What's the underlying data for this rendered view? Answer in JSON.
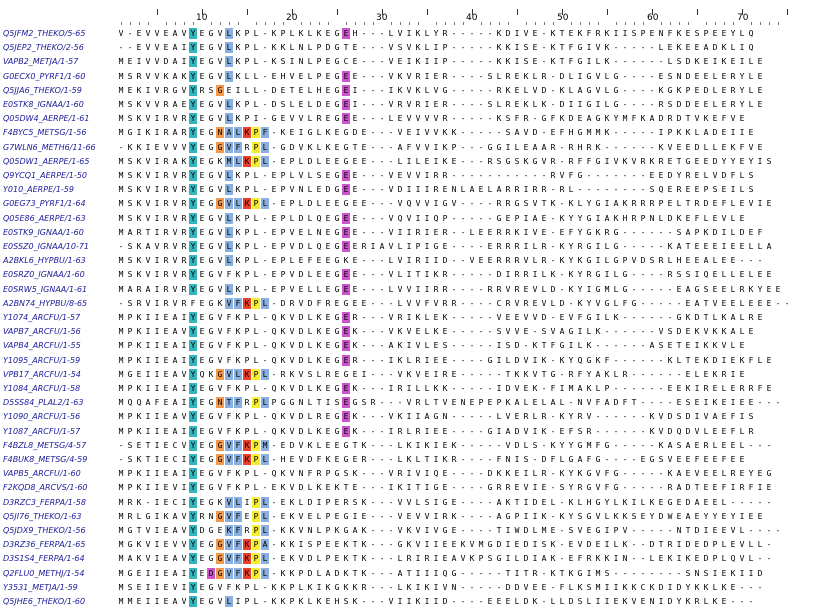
{
  "ruler": {
    "labels": [
      "10",
      "20",
      "30",
      "40",
      "50",
      "60",
      "70"
    ]
  },
  "alignment": {
    "columns": 75,
    "colors": {
      "cyan": "#34b4bc",
      "purple": "#cc55cc",
      "blue": "#8ab0e0",
      "orange": "#f29a4a",
      "red": "#e8402a",
      "yellow": "#f4ef2f",
      "green": "#4fae4f",
      "pink": "#e8aed0"
    },
    "rows": [
      {
        "name": "Q5JFM2_THEKO/5-65",
        "seq": "V-EVVEAVYEGVLKPL-KPLKLKEGEH---LVIKLYR-----KDIVE-KTEKFRKIISPENFKESPEEYLQ"
      },
      {
        "name": "Q5JEP2_THEKO/2-56",
        "seq": "--EVVEAIYEGVLKPL-KKLNLPDGTE---VSVKLIP-----KKISE-KTFGIVK-----LEKEEADKLIQ"
      },
      {
        "name": "VAPB2_METJA/1-57",
        "seq": "MEIVVDAIYEGVLKPL-KSINLPEGCE---VEIKIIP-----KKISE-KTFGILK------LSDKEIKEILE"
      },
      {
        "name": "G0ECX0_PYRF1/1-60",
        "seq": "MSRVVKAKYEGVLKLL-EHVELPEGEE---VKVRIER----SLREKLR-DLIGVLG----ESNDEELERYLE"
      },
      {
        "name": "Q5JJA6_THEKO/1-59",
        "seq": "MEKIVRGVYRSGEILL-DETELHEGEI---IKVKLVG-----RKELVD-KLAGVLG----KGKPEDLERYLE"
      },
      {
        "name": "E0STK8_IGNAA/1-60",
        "seq": "MSKVVRAEYEGVLKPL-DSLELDEGEI---VRVRIER----SLREKLK-DIIGILG----RSDDEELERYLE"
      },
      {
        "name": "Q05DW4_AERPE/1-61",
        "seq": "MSKVIRVRYEGVLKPI-GEVVLREGEE---LEVVVVR-----KSFR-GFKDEAGKYMFKADRDTVKEFVE"
      },
      {
        "name": "F4BYC5_METSG/1-56",
        "seq": "MGIKIRARYEGNALKPF-KEIGLKEGDE---VEIVVKK-----SAVD-EFHGMMK-----IPKKLADEIIE"
      },
      {
        "name": "G7WLN6_METH6/11-66",
        "seq": "-KKIEVVVYEGGVFRPL-GDVKLKEGTE---AFVVIKP---GGILEAAR-RHRK------KVEEDLLEKFVE"
      },
      {
        "name": "Q05DW1_AERPE/1-65",
        "seq": "MSKVIRAKYEGKMLKPL-EPLDLEEGEE---LILEIKE---RSGSKGVR-RFFGIVKVRKRETGEEDYYEYIS"
      },
      {
        "name": "Q9YCQ1_AERPE/1-50",
        "seq": "MSKVIRVRYEGVLKPL-EPLVLSEGEE---VEVVIRR-----------RVFG-------EEDYRELVDFLS"
      },
      {
        "name": "Y010_AERPE/1-59",
        "seq": "MSKVIRVRYEGVLKPL-EPVNLEDGEE---VDIIIRENLAELARRIRR-RL--------SQEREEPSEILS"
      },
      {
        "name": "G0EG73_PYRF1/1-64",
        "seq": "MSKVIRVRYEGGVLKPL-EPLDLEEGEE---VQVVIGV----RRGSVTK-KLYGIAKRRRPELTRDEFLEVIE"
      },
      {
        "name": "Q05E86_AERPE/1-63",
        "seq": "MSKVIRVRYEGVLKPL-EPLDLQEGEE---VQVIIQP-----GEPIAE-KYYGIAKHRPNLDKEFLEVLE"
      },
      {
        "name": "E0STK9_IGNAA/1-60",
        "seq": "MARTIRVRYEGVLKPL-EPVELNEGEE---VIIRIER--LEERRKIVE-EFYGKRG------SAPKDILDEF"
      },
      {
        "name": "E0SSZ0_IGNAA/10-71",
        "seq": "-SKAVRVRYEGVLKPL-EPVDLQEGEERIAVLIPIGE----ERRRILR-KYRGILG-----KATEEEIEELLA"
      },
      {
        "name": "A2BKL6_HYPBU/1-63",
        "seq": "MSKVIRVRYEGVLKPL-EPLEFEEGKE---LVIRIID--VEERRRVLR-KYKGILGPVDSRLHEEALEE---"
      },
      {
        "name": "E0SRZ0_IGNAA/1-60",
        "seq": "MSKVIRVRYEGVFKPL-EPVDLEEGEE---VLITIKR-----DIRRILK-KYRGILG----RSSIQELLELEE"
      },
      {
        "name": "E0SRW5_IGNAA/1-61",
        "seq": "MARAIRVRYEGVLKPL-EPVELLEGEE---LVVIIRR----RRVREVLD-KYIGMLG-----EAGSEELRKYEE"
      },
      {
        "name": "A2BN74_HYPBU/8-65",
        "seq": "-SRVIRVRFEGKVFKPL-DRVDFREGEE---LVVFVRR----CRVREVLD-KYVGLFG-----EATVEELEEE---"
      },
      {
        "name": "Y1074_ARCFU/1-57",
        "seq": "MPKIIEAIYEGVFKPL-QKVDLKEGER---VRIKLEK-----VEEVVD-EVFGILK------GKDTLKALRE"
      },
      {
        "name": "VAPB7_ARCFU/1-56",
        "seq": "MPKIIEAVYEGVFKPL-QKVDLKEGEK---VKVELKE-----SVVE-SVAGILK------VSDEKVKKALE"
      },
      {
        "name": "VAPB4_ARCFU/1-55",
        "seq": "MPKIIEAIYEGVFKPL-QKVDLKEGEK---AKIVLES-----ISD-KTFGILK------ASETEIKKVLE"
      },
      {
        "name": "Y1095_ARCFU/1-59",
        "seq": "MPKIIEAIYEGVFKPL-QKVDLKEGER---IKLRIEE----GILDVIK-KYQGKF------KLTEKDIEKFLE"
      },
      {
        "name": "VPB17_ARCFU/1-54",
        "seq": "MGEIIEAVYQKGVLKPL-RKVSLREGEI---VKVEIRE-----TKKVTG-RFYAKLR------ELEKRIE"
      },
      {
        "name": "Y1084_ARCFU/1-58",
        "seq": "MPKIIEAIYEGVFKPL-QKVDLKEGEK---IRILLKK-----IDVEK-FIMAKLP------EEKIRELERRFE"
      },
      {
        "name": "D5SS84_PLAL2/1-63",
        "seq": "MQQAFEAIYEGNTFRPLPGGNLTISEGSR---VRLTVENEPEPKALELAL-NVFADFT----ESEIKEIEE---"
      },
      {
        "name": "Y1090_ARCFU/1-56",
        "seq": "MPKIIEAVYEGVFKPL-QKVDLREGEK---VKIIAGN-----LVERLR-KYRV------KVDSDIVAEFIS"
      },
      {
        "name": "Y1087_ARCFU/1-57",
        "seq": "MPKIIEAIYEGVFKPL-QKVDLKEGEK---IRLRIEE----GIADVIK-EFSR------KVDQDVLEEFLR"
      },
      {
        "name": "F4BZL8_METSG/4-57",
        "seq": "-SETIECVYEGGVFKPM-EDVKLEEGTK---LKIKIEK-----VDLS-KYYGMFG-----KASAERLEEL---"
      },
      {
        "name": "F4BUK8_METSG/4-59",
        "seq": "-SKTIECIYEGGVFKPL-HEVDFKEGER---LKLTIKR----FNIS-DFLGAFG----EGSVEEFEEFEE"
      },
      {
        "name": "VAPB5_ARCFU/1-60",
        "seq": "MPKIIEAIYEGVFKPL-QKVNFRPGSK---VRIVIQE----DKKEILR-KYKGVFG-----KAEVEELREYEG"
      },
      {
        "name": "F2KQD8_ARCVS/1-60",
        "seq": "MPKIIEVIYEGVFKPL-EKVDLKEKTE---IKITIGE----GRREVIE-SYRGVFG-----RADTEEFIRFIE"
      },
      {
        "name": "D3RZC3_FERPA/1-58",
        "seq": "MRK-IECIYEGKVLIPL-EKLDIPERSK---VVLSIGE----AKTIDEL-KLHGYLKILKEGEDAEEL-----"
      },
      {
        "name": "Q5JI76_THEKO/1-63",
        "seq": "MRLGIKAVYRNGVFEPL-EKVELPEGIE---VEVVIRK----AGPIIK-KYSGVLKKSEYDWEAEYYEYIEE"
      },
      {
        "name": "Q5JDX9_THEKO/1-56",
        "seq": "MGTVIEAVYDGEKFRPL-KKVNLPKGAK---VKVIVGE----TIWDLME-SVEGIPV-----NTDIEEVL----"
      },
      {
        "name": "D3RZ36_FERPA/1-65",
        "seq": "MGKVIEVVYEGGVFKPA-KKISPEEKTK---GKVIIEEKVMGDIEDISK-EVDEILK--DTRIDEDPLEVLL-"
      },
      {
        "name": "D3S1S4_FERPA/1-64",
        "seq": "MAKVIEAVYEGGVFKPL-EKVDLPEKTK---LRIRIEAVKPSGILDIAK-EFRKKIN--LEKIKEDPLQVL--"
      },
      {
        "name": "Q2FLU0_METHJ/1-54",
        "seq": "MGEIIEAIYEDGVFKPL-KKPDLADKTK---ATIIIQG-----TITR-KTKGIMS--------SNSIEKIID"
      },
      {
        "name": "Y3531_METJA/1-59",
        "seq": "MSEIIEVIYEGVFKPL-KKPLKIKGKKR---LKIKIVN-----DDVEE-FLKSMIIKKCKDIDYKKLKE---"
      },
      {
        "name": "Q5JHE6_THEKO/1-60",
        "seq": "MMEIIEAVYEGVLIPL-KKPKLKEHSK---VIIKIID----EEELDK-LLDSLIIEKVENIDYKRLKE---"
      }
    ]
  }
}
